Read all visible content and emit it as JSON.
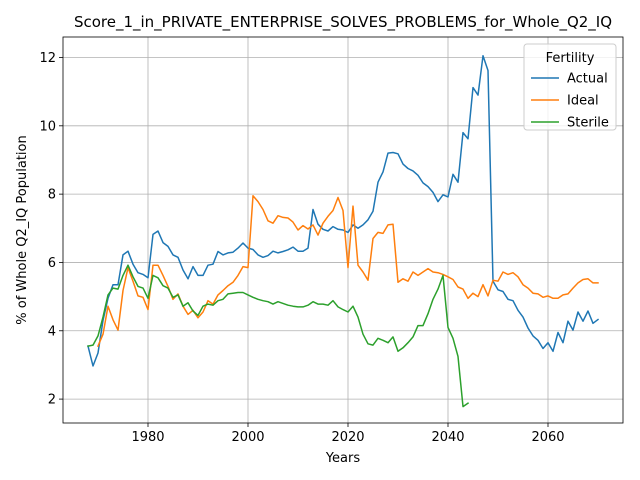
{
  "chart_data": {
    "type": "line",
    "title": "Score_1_in_PRIVATE_ENTERPRISE_SOLVES_PROBLEMS_for_Whole_Q2_IQ",
    "xlabel": "Years",
    "ylabel": "% of Whole Q2_IQ Population",
    "xlim": [
      1963,
      2075
    ],
    "ylim": [
      1.3,
      12.6
    ],
    "xticks": [
      1980,
      2000,
      2020,
      2040,
      2060
    ],
    "yticks": [
      2,
      4,
      6,
      8,
      10,
      12
    ],
    "grid": true,
    "legend": {
      "title": "Fertility",
      "position": "top-right"
    },
    "series": [
      {
        "name": "Actual",
        "color": "#1f77b4",
        "x": [
          1968,
          1969,
          1970,
          1971,
          1972,
          1973,
          1974,
          1975,
          1976,
          1977,
          1978,
          1979,
          1980,
          1981,
          1982,
          1983,
          1984,
          1985,
          1986,
          1987,
          1988,
          1989,
          1990,
          1991,
          1992,
          1993,
          1994,
          1995,
          1996,
          1997,
          1998,
          1999,
          2000,
          2001,
          2002,
          2003,
          2004,
          2005,
          2006,
          2007,
          2008,
          2009,
          2010,
          2011,
          2012,
          2013,
          2014,
          2015,
          2016,
          2017,
          2018,
          2019,
          2020,
          2021,
          2022,
          2023,
          2024,
          2025,
          2026,
          2027,
          2028,
          2029,
          2030,
          2031,
          2032,
          2033,
          2034,
          2035,
          2036,
          2037,
          2038,
          2039,
          2040,
          2041,
          2042,
          2043,
          2044,
          2045,
          2046,
          2047,
          2048,
          2049,
          2050,
          2051,
          2052,
          2053,
          2054,
          2055,
          2056,
          2057,
          2058,
          2059,
          2060,
          2061,
          2062,
          2063,
          2064,
          2065,
          2066,
          2067,
          2068,
          2069,
          2070
        ],
        "y": [
          3.55,
          2.97,
          3.35,
          4.3,
          4.95,
          5.35,
          5.35,
          6.22,
          6.33,
          5.95,
          5.7,
          5.65,
          5.55,
          6.82,
          6.92,
          6.58,
          6.47,
          6.22,
          6.15,
          5.78,
          5.52,
          5.88,
          5.62,
          5.62,
          5.92,
          5.95,
          6.32,
          6.22,
          6.28,
          6.3,
          6.42,
          6.57,
          6.42,
          6.38,
          6.22,
          6.15,
          6.2,
          6.33,
          6.28,
          6.32,
          6.37,
          6.45,
          6.33,
          6.33,
          6.42,
          7.55,
          7.12,
          6.97,
          6.92,
          7.05,
          6.97,
          6.95,
          6.88,
          7.1,
          7.0,
          7.1,
          7.25,
          7.5,
          8.35,
          8.65,
          9.2,
          9.22,
          9.18,
          8.88,
          8.75,
          8.68,
          8.55,
          8.33,
          8.22,
          8.05,
          7.78,
          7.98,
          7.92,
          8.58,
          8.35,
          9.8,
          9.62,
          11.12,
          10.9,
          12.05,
          11.62,
          5.45,
          5.2,
          5.15,
          4.92,
          4.88,
          4.6,
          4.4,
          4.08,
          3.85,
          3.72,
          3.48,
          3.65,
          3.4,
          3.95,
          3.65,
          4.28,
          4.02,
          4.55,
          4.28,
          4.58,
          4.22,
          4.33
        ]
      },
      {
        "name": "Ideal",
        "color": "#ff7f0e",
        "x": [
          1968,
          1969,
          1970,
          1971,
          1972,
          1973,
          1974,
          1975,
          1976,
          1977,
          1978,
          1979,
          1980,
          1981,
          1982,
          1983,
          1984,
          1985,
          1986,
          1987,
          1988,
          1989,
          1990,
          1991,
          1992,
          1993,
          1994,
          1995,
          1996,
          1997,
          1998,
          1999,
          2000,
          2001,
          2002,
          2003,
          2004,
          2005,
          2006,
          2007,
          2008,
          2009,
          2010,
          2011,
          2012,
          2013,
          2014,
          2015,
          2016,
          2017,
          2018,
          2019,
          2020,
          2021,
          2022,
          2023,
          2024,
          2025,
          2026,
          2027,
          2028,
          2029,
          2030,
          2031,
          2032,
          2033,
          2034,
          2035,
          2036,
          2037,
          2038,
          2039,
          2040,
          2041,
          2042,
          2043,
          2044,
          2045,
          2046,
          2047,
          2048,
          2049,
          2050,
          2051,
          2052,
          2053,
          2054,
          2055,
          2056,
          2057,
          2058,
          2059,
          2060,
          2061,
          2062,
          2063,
          2064,
          2065,
          2066,
          2067,
          2068,
          2069,
          2070
        ],
        "y": [
          null,
          null,
          3.55,
          3.9,
          4.72,
          4.32,
          4.02,
          5.18,
          5.85,
          5.45,
          5.02,
          4.98,
          4.62,
          5.92,
          5.92,
          5.62,
          5.3,
          4.92,
          5.08,
          4.72,
          4.48,
          4.6,
          4.38,
          4.55,
          4.88,
          4.78,
          5.05,
          5.18,
          5.32,
          5.42,
          5.62,
          5.88,
          5.85,
          7.95,
          7.78,
          7.55,
          7.22,
          7.15,
          7.37,
          7.32,
          7.3,
          7.18,
          6.95,
          7.08,
          6.98,
          7.1,
          6.8,
          7.15,
          7.35,
          7.52,
          7.9,
          7.52,
          5.85,
          7.65,
          5.92,
          5.72,
          5.48,
          6.7,
          6.88,
          6.85,
          7.1,
          7.12,
          5.42,
          5.52,
          5.45,
          5.72,
          5.62,
          5.72,
          5.82,
          5.72,
          5.7,
          5.65,
          5.58,
          5.5,
          5.28,
          5.22,
          4.95,
          5.1,
          5.0,
          5.35,
          5.02,
          5.48,
          5.45,
          5.72,
          5.65,
          5.7,
          5.58,
          5.35,
          5.25,
          5.1,
          5.08,
          4.98,
          5.02,
          4.95,
          4.95,
          5.05,
          5.08,
          5.25,
          5.4,
          5.5,
          5.52,
          5.4,
          5.4
        ]
      },
      {
        "name": "Sterile",
        "color": "#2ca02c",
        "x": [
          1968,
          1969,
          1970,
          1971,
          1972,
          1973,
          1974,
          1975,
          1976,
          1977,
          1978,
          1979,
          1980,
          1981,
          1982,
          1983,
          1984,
          1985,
          1986,
          1987,
          1988,
          1989,
          1990,
          1991,
          1992,
          1993,
          1994,
          1995,
          1996,
          1997,
          1998,
          1999,
          2000,
          2001,
          2002,
          2003,
          2004,
          2005,
          2006,
          2007,
          2008,
          2009,
          2010,
          2011,
          2012,
          2013,
          2014,
          2015,
          2016,
          2017,
          2018,
          2019,
          2020,
          2021,
          2022,
          2023,
          2024,
          2025,
          2026,
          2027,
          2028,
          2029,
          2030,
          2031,
          2032,
          2033,
          2034,
          2035,
          2036,
          2037,
          2038,
          2039,
          2040,
          2041,
          2042,
          2043,
          2044
        ],
        "y": [
          3.55,
          3.58,
          3.85,
          4.4,
          5.05,
          5.25,
          5.22,
          5.62,
          5.92,
          5.58,
          5.3,
          5.25,
          4.95,
          5.62,
          5.55,
          5.32,
          5.25,
          4.98,
          5.05,
          4.72,
          4.82,
          4.58,
          4.45,
          4.72,
          4.78,
          4.75,
          4.88,
          4.92,
          5.08,
          5.1,
          5.12,
          5.12,
          5.05,
          4.98,
          4.92,
          4.88,
          4.85,
          4.78,
          4.85,
          4.8,
          4.75,
          4.72,
          4.7,
          4.7,
          4.75,
          4.85,
          4.78,
          4.78,
          4.75,
          4.88,
          4.7,
          4.62,
          4.55,
          4.72,
          4.4,
          3.9,
          3.62,
          3.58,
          3.78,
          3.72,
          3.65,
          3.82,
          3.4,
          3.5,
          3.65,
          3.82,
          4.15,
          4.15,
          4.5,
          4.92,
          5.22,
          5.62,
          4.1,
          3.78,
          3.25,
          1.78,
          1.88
        ]
      }
    ]
  }
}
